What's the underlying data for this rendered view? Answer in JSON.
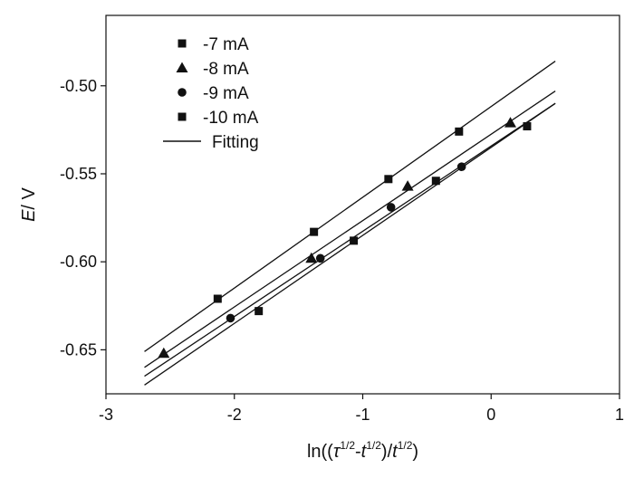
{
  "chart_data": {
    "type": "scatter",
    "xlabel": {
      "pre": "ln((",
      "tau": "τ",
      "sup1": "1/2",
      "dash": "-",
      "t1": "t",
      "sup2": "1/2",
      "mid": ")/",
      "t2": "t",
      "sup3": "1/2",
      "post": ")"
    },
    "ylabel": {
      "italic": "E",
      "rest": "/ V"
    },
    "xlim": [
      -3,
      1
    ],
    "ylim": [
      -0.675,
      -0.46
    ],
    "x_ticks": [
      -3,
      -2,
      -1,
      0,
      1
    ],
    "x_tick_labels": [
      "-3",
      "-2",
      "-1",
      "0",
      "1"
    ],
    "y_ticks": [
      -0.65,
      -0.6,
      -0.55,
      -0.5
    ],
    "y_tick_labels": [
      "-0.65",
      "-0.60",
      "-0.55",
      "-0.50"
    ],
    "grid": false,
    "legend_position": "top-left",
    "series": [
      {
        "name": "-7 mA",
        "marker": "square",
        "x": [
          -2.13,
          -1.38,
          -0.8,
          -0.25
        ],
        "y": [
          -0.621,
          -0.583,
          -0.553,
          -0.526
        ],
        "fit": [
          [
            -2.7,
            -0.651
          ],
          [
            0.5,
            -0.486
          ]
        ]
      },
      {
        "name": "-8 mA",
        "marker": "triangle",
        "x": [
          -2.55,
          -1.4,
          -0.65,
          0.15
        ],
        "y": [
          -0.652,
          -0.598,
          -0.557,
          -0.521
        ],
        "fit": [
          [
            -2.7,
            -0.66
          ],
          [
            0.5,
            -0.503
          ]
        ]
      },
      {
        "name": "-9 mA",
        "marker": "circle",
        "x": [
          -2.03,
          -1.33,
          -0.78,
          -0.23
        ],
        "y": [
          -0.632,
          -0.598,
          -0.569,
          -0.546
        ],
        "fit": [
          [
            -2.7,
            -0.665
          ],
          [
            0.5,
            -0.51
          ]
        ]
      },
      {
        "name": "-10 mA",
        "marker": "square",
        "x": [
          -1.81,
          -1.07,
          -0.43,
          0.28
        ],
        "y": [
          -0.628,
          -0.588,
          -0.554,
          -0.523
        ],
        "fit": [
          [
            -2.7,
            -0.67
          ],
          [
            0.5,
            -0.51
          ]
        ]
      }
    ],
    "fitting_label": "Fitting"
  }
}
